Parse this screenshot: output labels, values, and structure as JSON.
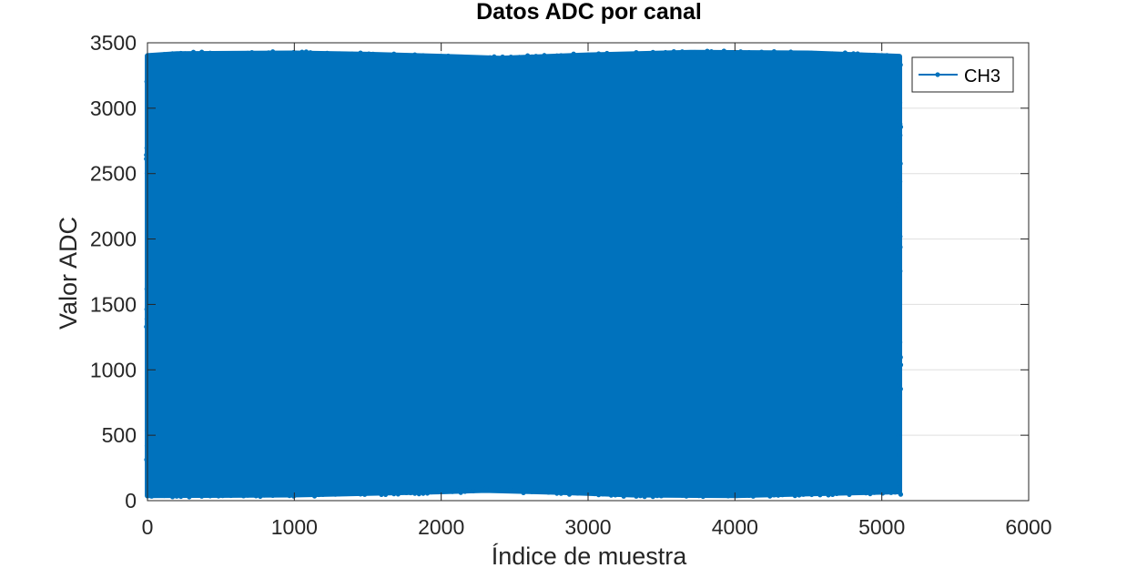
{
  "chart_data": {
    "type": "line",
    "title": "Datos ADC por canal",
    "xlabel": "Índice de muestra",
    "ylabel": "Valor ADC",
    "xlim": [
      0,
      6000
    ],
    "ylim": [
      0,
      3500
    ],
    "xticks": [
      0,
      1000,
      2000,
      3000,
      4000,
      5000,
      6000
    ],
    "yticks": [
      0,
      500,
      1000,
      1500,
      2000,
      2500,
      3000,
      3500
    ],
    "grid": true,
    "legend": {
      "location": "top-right",
      "entries": [
        "CH3"
      ]
    },
    "series": [
      {
        "name": "CH3",
        "color": "#0072BD",
        "marker": "point",
        "x_range": [
          0,
          5120
        ],
        "y_range": [
          35,
          3440
        ],
        "upper_envelope": [
          {
            "x": 0,
            "y": 3400
          },
          {
            "x": 200,
            "y": 3415
          },
          {
            "x": 1000,
            "y": 3420
          },
          {
            "x": 1500,
            "y": 3410
          },
          {
            "x": 2000,
            "y": 3395
          },
          {
            "x": 2400,
            "y": 3380
          },
          {
            "x": 3000,
            "y": 3405
          },
          {
            "x": 3700,
            "y": 3425
          },
          {
            "x": 4500,
            "y": 3420
          },
          {
            "x": 5120,
            "y": 3395
          }
        ],
        "lower_envelope": [
          {
            "x": 0,
            "y": 40
          },
          {
            "x": 1000,
            "y": 45
          },
          {
            "x": 2000,
            "y": 70
          },
          {
            "x": 2300,
            "y": 80
          },
          {
            "x": 2800,
            "y": 65
          },
          {
            "x": 3300,
            "y": 45
          },
          {
            "x": 4000,
            "y": 40
          },
          {
            "x": 5120,
            "y": 70
          }
        ]
      }
    ]
  }
}
